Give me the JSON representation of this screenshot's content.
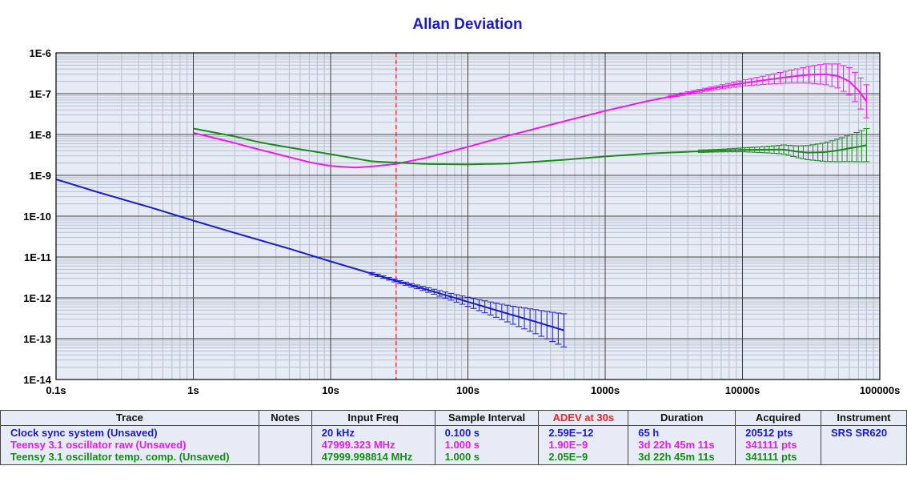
{
  "chart_data": {
    "type": "line",
    "title": "Allan Deviation",
    "x_scale": "log",
    "y_scale": "log",
    "xlim": [
      0.1,
      100000
    ],
    "ylim": [
      1e-14,
      1e-06
    ],
    "x_tick_labels": [
      "0.1s",
      "1s",
      "10s",
      "100s",
      "1000s",
      "10000s",
      "100000s"
    ],
    "y_tick_labels": [
      "1E-6",
      "1E-7",
      "1E-8",
      "1E-9",
      "1E-10",
      "1E-11",
      "1E-12",
      "1E-13",
      "1E-14"
    ],
    "grid": true,
    "legend": "table below chart",
    "marker_line": {
      "x": 30,
      "color": "#e02020"
    },
    "series": [
      {
        "name": "Clock sync system (Unsaved)",
        "color": "#1a1ad0",
        "x": [
          0.1,
          0.2,
          0.5,
          1,
          2,
          5,
          10,
          20,
          30,
          50,
          100,
          200,
          300,
          500
        ],
        "y": [
          8e-10,
          3.9e-10,
          1.6e-10,
          7.8e-11,
          3.9e-11,
          1.6e-11,
          7.8e-12,
          3.9e-12,
          2.59e-12,
          1.6e-12,
          8e-13,
          4e-13,
          2.7e-13,
          1.6e-13
        ],
        "errorbars_from": 20
      },
      {
        "name": "Teensy 3.1 oscillator raw (Unsaved)",
        "color": "#f018f0",
        "x": [
          1,
          2,
          3,
          5,
          7,
          10,
          15,
          20,
          30,
          50,
          100,
          200,
          500,
          1000,
          2000,
          5000,
          10000,
          20000,
          30000,
          40000,
          50000,
          60000,
          70000,
          80000
        ],
        "y": [
          1.1e-08,
          6.2e-09,
          4.3e-09,
          2.8e-09,
          2.1e-09,
          1.7e-09,
          1.55e-09,
          1.65e-09,
          1.9e-09,
          2.7e-09,
          5e-09,
          9.5e-09,
          2.1e-08,
          3.8e-08,
          6.5e-08,
          1.2e-07,
          1.8e-07,
          2.5e-07,
          2.9e-07,
          3e-07,
          2.7e-07,
          2e-07,
          1.2e-07,
          6.5e-08
        ],
        "errorbars_from": 3000
      },
      {
        "name": "Teensy 3.1 oscillator temp. comp. (Unsaved)",
        "color": "#1a8a1a",
        "x": [
          1,
          2,
          3,
          5,
          7,
          10,
          15,
          20,
          30,
          50,
          100,
          200,
          500,
          1000,
          2000,
          5000,
          10000,
          20000,
          25000,
          30000,
          40000,
          50000,
          60000,
          70000,
          80000
        ],
        "y": [
          1.4e-08,
          9e-09,
          6.5e-09,
          4.8e-09,
          4e-09,
          3.3e-09,
          2.6e-09,
          2.2e-09,
          2.05e-09,
          1.9e-09,
          1.85e-09,
          1.95e-09,
          2.4e-09,
          2.9e-09,
          3.4e-09,
          3.9e-09,
          4.2e-09,
          4.3e-09,
          3.8e-09,
          3.6e-09,
          3.7e-09,
          4.1e-09,
          4.6e-09,
          5e-09,
          5.5e-09
        ],
        "errorbars_from": 5000
      }
    ]
  },
  "table": {
    "headers": {
      "trace": "Trace",
      "notes": "Notes",
      "input_freq": "Input Freq",
      "sample_interval": "Sample Interval",
      "adev": "ADEV at 30s",
      "duration": "Duration",
      "acquired": "Acquired",
      "instrument": "Instrument"
    },
    "rows": [
      {
        "trace": "Clock sync system (Unsaved)",
        "notes": "",
        "input_freq": "20 kHz",
        "sample_interval": "0.100 s",
        "adev": "2.59E−12",
        "duration": "65 h",
        "acquired": "20512 pts",
        "instrument": "SRS SR620"
      },
      {
        "trace": "Teensy 3.1 oscillator raw (Unsaved)",
        "notes": "",
        "input_freq": "47999.323 MHz",
        "sample_interval": "1.000 s",
        "adev": "1.90E−9",
        "duration": "3d 22h 45m 11s",
        "acquired": "341111 pts",
        "instrument": ""
      },
      {
        "trace": "Teensy 3.1 oscillator temp. comp. (Unsaved)",
        "notes": "",
        "input_freq": "47999.998814 MHz",
        "sample_interval": "1.000 s",
        "adev": "2.05E−9",
        "duration": "3d 22h 45m 11s",
        "acquired": "341111 pts",
        "instrument": ""
      }
    ]
  }
}
